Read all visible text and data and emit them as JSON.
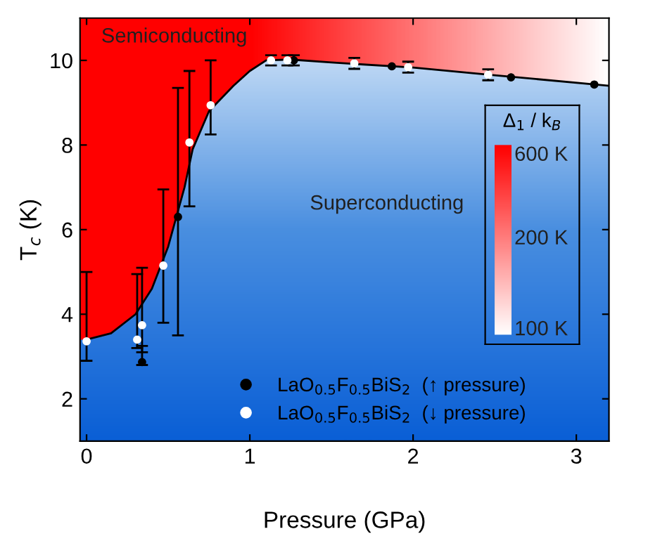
{
  "chart_data": {
    "type": "scatter",
    "xlabel": "Pressure (GPa)",
    "ylabel": "T$_{c}$ (K)",
    "xlim": [
      -0.04,
      3.2
    ],
    "ylim": [
      1,
      11
    ],
    "xticks": [
      0,
      1,
      2,
      3
    ],
    "yticks": [
      2,
      4,
      6,
      8,
      10
    ],
    "legend": "bottom",
    "grid": false,
    "marker": "circle",
    "clabel": "Δ$_{1}$ / k$_{B}$",
    "annotations": [
      "Semiconducting",
      "Superconducting",
      "600 K",
      "200 K",
      "100 K"
    ],
    "series": [
      {
        "type": "line",
        "color": "#000000",
        "marker": "none",
        "line_style": "solid",
        "x": [
          0,
          0.15,
          0.3,
          0.4,
          0.5,
          0.6,
          0.65,
          0.75,
          0.9,
          1.0,
          1.1,
          1.25,
          1.5,
          2.0,
          2.5,
          3.2
        ],
        "values": [
          3.4,
          3.55,
          4.0,
          4.6,
          5.6,
          7.0,
          7.9,
          8.8,
          9.4,
          9.75,
          10.0,
          10.02,
          9.95,
          9.83,
          9.65,
          9.4
        ]
      },
      {
        "name": "LaO$_{0.5}$F$_{0.5}$BiS$_{2}$  (↑ pressure)",
        "color": "#000000",
        "x": [
          0.34,
          0.56,
          1.27,
          1.87,
          2.6,
          3.11
        ],
        "values": [
          2.87,
          6.3,
          10.0,
          9.86,
          9.6,
          9.43
        ],
        "errors": [
          [
            2.8,
            3.25
          ],
          [
            3.5,
            9.35
          ],
          [
            9.88,
            10.12
          ],
          null,
          null,
          null
        ]
      },
      {
        "name": "LaO$_{0.5}$F$_{0.5}$BiS$_{2}$  (↓ pressure)",
        "color": "#ffffff",
        "x": [
          0,
          0.31,
          0.34,
          0.47,
          0.63,
          0.76,
          1.13,
          1.23,
          1.64,
          1.97,
          2.46
        ],
        "values": [
          3.36,
          3.4,
          3.74,
          5.15,
          8.06,
          8.94,
          10.0,
          10.0,
          9.93,
          9.84,
          9.66
        ],
        "errors": [
          [
            2.9,
            5.0
          ],
          [
            3.2,
            4.95
          ],
          [
            3.1,
            5.1
          ],
          [
            3.8,
            6.95
          ],
          [
            6.55,
            9.75
          ],
          [
            8.25,
            10.0
          ],
          [
            9.88,
            10.12
          ],
          [
            9.88,
            10.12
          ],
          [
            9.8,
            10.06
          ],
          [
            9.71,
            9.97
          ],
          [
            9.53,
            9.79
          ]
        ]
      }
    ]
  }
}
